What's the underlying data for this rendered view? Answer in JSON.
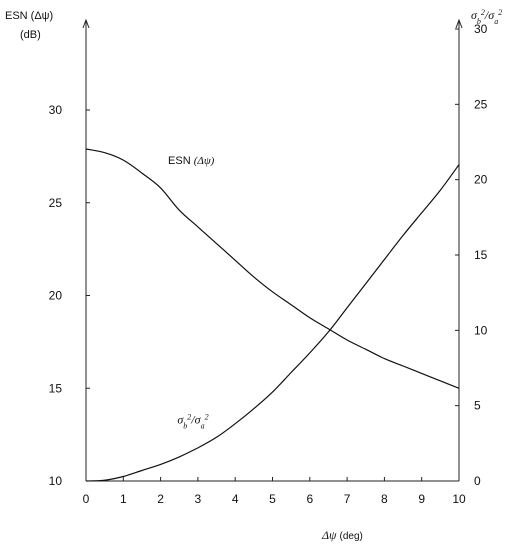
{
  "chart_data": {
    "type": "line",
    "x_label": "Δψ (deg)",
    "x_ticks": [
      "0",
      "1",
      "2",
      "3",
      "4",
      "5",
      "6",
      "7",
      "8",
      "9",
      "10"
    ],
    "xlim": [
      0,
      10
    ],
    "left_axis": {
      "label_line1": "ESN (Δψ)",
      "label_line2": "(dB)",
      "ylim": [
        10,
        35
      ],
      "ticks": [
        "10",
        "15",
        "20",
        "25",
        "30"
      ]
    },
    "right_axis": {
      "label": "σb²/σa²",
      "ylim": [
        0,
        30
      ],
      "ticks": [
        "0",
        "5",
        "10",
        "15",
        "20",
        "25",
        "30"
      ]
    },
    "series": [
      {
        "name": "ESN (Δψ)",
        "axis": "left",
        "x": [
          0,
          0.5,
          1,
          1.5,
          2,
          2.5,
          3,
          3.5,
          4,
          4.5,
          5,
          5.5,
          6,
          6.5,
          7,
          7.5,
          8,
          8.5,
          9,
          9.5,
          10
        ],
        "y": [
          27.9,
          27.7,
          27.3,
          26.6,
          25.8,
          24.6,
          23.7,
          22.8,
          21.9,
          21.0,
          20.2,
          19.5,
          18.8,
          18.2,
          17.6,
          17.1,
          16.6,
          16.2,
          15.8,
          15.4,
          15.0
        ]
      },
      {
        "name": "σb²/σa²",
        "axis": "right",
        "x": [
          0,
          0.5,
          1,
          1.5,
          2,
          2.5,
          3,
          3.5,
          4,
          4.5,
          5,
          5.5,
          6,
          6.5,
          7,
          7.5,
          8,
          8.5,
          9,
          9.5,
          10
        ],
        "y": [
          0,
          0.05,
          0.3,
          0.7,
          1.1,
          1.6,
          2.2,
          2.9,
          3.8,
          4.8,
          5.9,
          7.2,
          8.5,
          9.9,
          11.5,
          13.1,
          14.7,
          16.3,
          17.8,
          19.3,
          21.0
        ]
      }
    ],
    "annotations": [
      {
        "text": "ESN (Δψ)",
        "series": 0
      },
      {
        "text": "σb²/σa²",
        "series": 1
      }
    ]
  }
}
